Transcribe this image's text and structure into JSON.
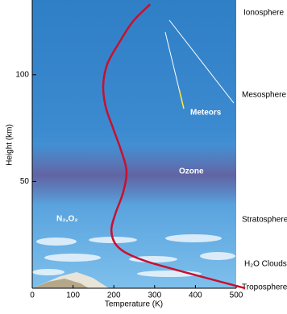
{
  "chart_data": {
    "type": "line",
    "xlabel": "Temperature (K)",
    "ylabel": "Height (km)",
    "xlim": [
      0,
      500
    ],
    "xticks": [
      0,
      100,
      200,
      300,
      400,
      500
    ],
    "ylim": [
      0,
      135
    ],
    "yticks": [
      50,
      100
    ],
    "series": [
      {
        "color": "#c8102e",
        "x": [
          522,
          326,
          247,
          207,
          194,
          204,
          223,
          231,
          217,
          198,
          180,
          174,
          184,
          213,
          247,
          289
        ],
        "values": [
          0,
          10,
          15,
          20,
          27,
          35,
          45,
          55,
          65,
          75,
          85,
          95,
          105,
          115,
          125,
          133
        ]
      }
    ],
    "layers": [
      "Ionosphere",
      "Mesosphere",
      "Stratosphere",
      "H₂O Clouds",
      "Troposphere"
    ],
    "annotations": [
      "Meteors",
      "Ozone",
      "N₂,O₂"
    ]
  }
}
